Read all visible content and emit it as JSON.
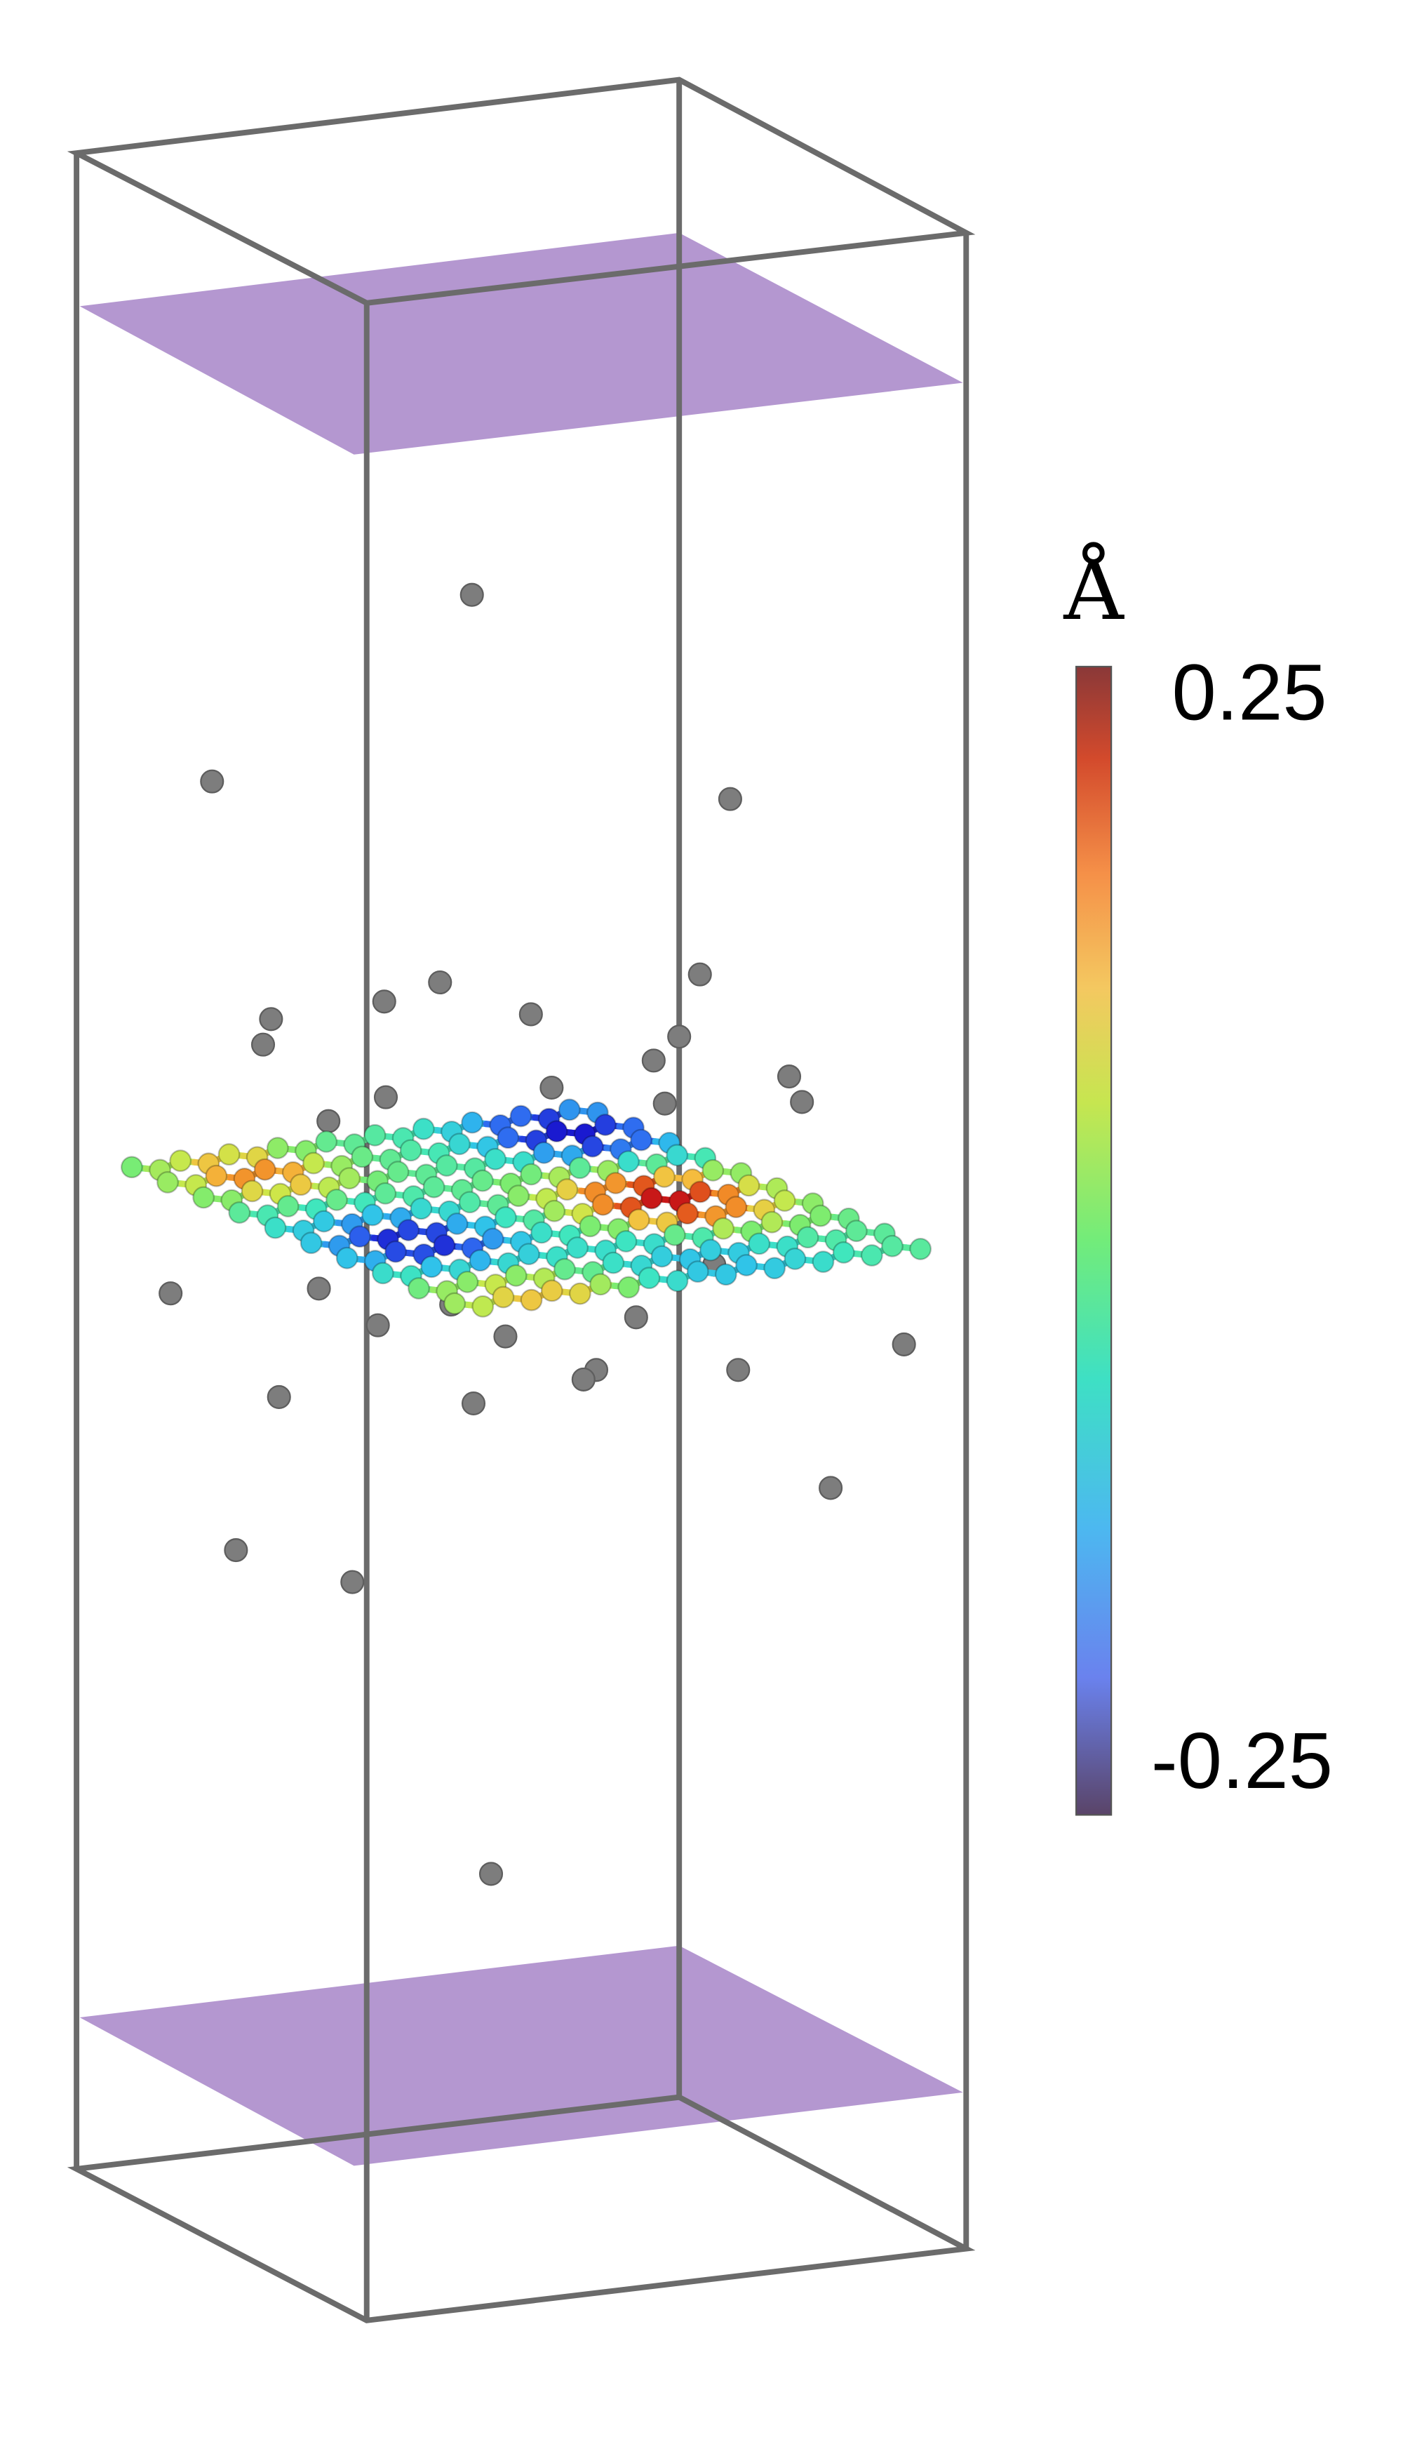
{
  "colorbar": {
    "unit": "Å",
    "lim": [
      -0.25,
      0.25
    ],
    "ticks": [
      0.25,
      -0.25
    ]
  }
}
